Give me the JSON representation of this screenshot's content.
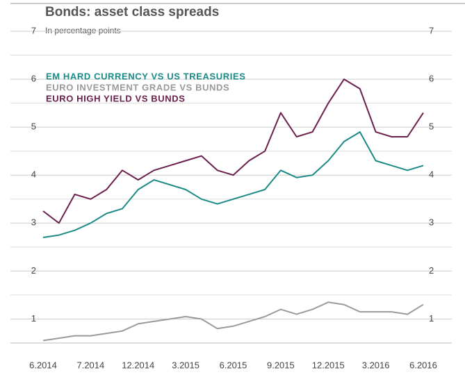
{
  "chart_data": {
    "type": "line",
    "title": "Bonds: asset class spreads",
    "subtitle": "In percentage points",
    "x": [
      "6.2014",
      "7.2014",
      "8.2014",
      "9.2014",
      "10.2014",
      "11.2014",
      "12.2014",
      "1.2015",
      "2.2015",
      "3.2015",
      "4.2015",
      "5.2015",
      "6.2015",
      "7.2015",
      "8.2015",
      "9.2015",
      "10.2015",
      "11.2015",
      "12.2015",
      "1.2016",
      "2.2016",
      "3.2016",
      "4.2016",
      "5.2016",
      "6.2016"
    ],
    "xticks": [
      "6.2014",
      "7.2014",
      "12.2014",
      "3.2015",
      "6.2015",
      "9.2015",
      "12.2015",
      "3.2016",
      "6.2016"
    ],
    "ylim": [
      0.5,
      7
    ],
    "yticks": [
      1,
      2,
      3,
      4,
      5,
      6,
      7
    ],
    "grid": true,
    "series": [
      {
        "name": "EM HARD CURRENCY VS US TREASURIES",
        "color": "#1b8a87",
        "values": [
          2.7,
          2.75,
          2.85,
          3.0,
          3.2,
          3.3,
          3.7,
          3.9,
          3.8,
          3.7,
          3.5,
          3.4,
          3.5,
          3.6,
          3.7,
          4.1,
          3.95,
          4.0,
          4.3,
          4.7,
          4.9,
          4.3,
          4.2,
          4.1,
          4.2
        ]
      },
      {
        "name": "EURO INVESTMENT GRADE VS BUNDS",
        "color": "#9a9a9a",
        "values": [
          0.55,
          0.6,
          0.65,
          0.65,
          0.7,
          0.75,
          0.9,
          0.95,
          1.0,
          1.05,
          1.0,
          0.8,
          0.85,
          0.95,
          1.05,
          1.2,
          1.1,
          1.2,
          1.35,
          1.3,
          1.15,
          1.15,
          1.15,
          1.1,
          1.3
        ]
      },
      {
        "name": "EURO HIGH YIELD VS BUNDS",
        "color": "#6b1f4c",
        "values": [
          3.25,
          3.0,
          3.6,
          3.5,
          3.7,
          4.1,
          3.9,
          4.1,
          4.2,
          4.3,
          4.4,
          4.1,
          4.0,
          4.3,
          4.5,
          5.3,
          4.8,
          4.9,
          5.5,
          6.0,
          5.8,
          4.9,
          4.8,
          4.8,
          5.3
        ]
      }
    ]
  }
}
